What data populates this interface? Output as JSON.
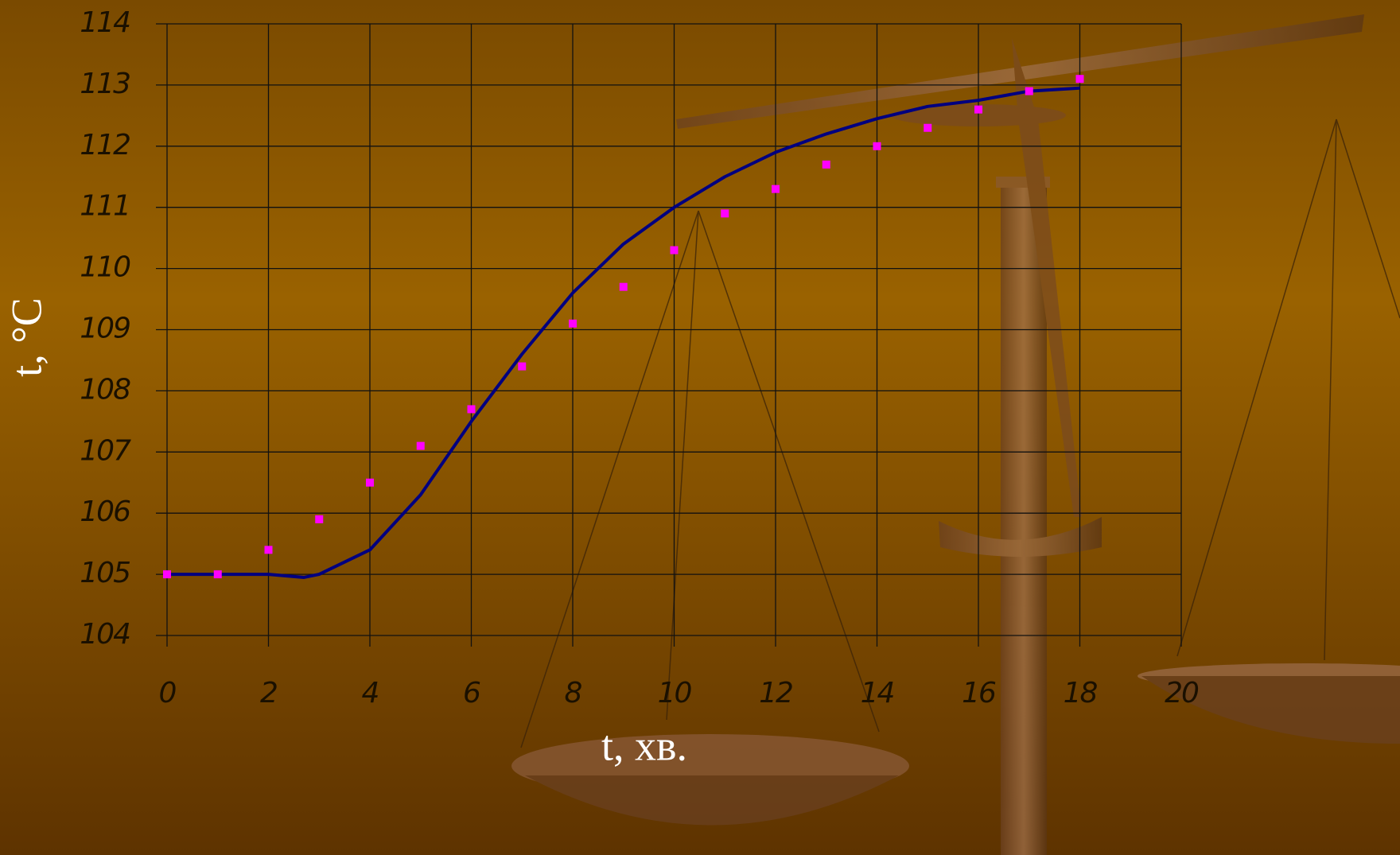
{
  "chart_data": {
    "type": "scatter",
    "xlabel": "t, хв.",
    "ylabel": "t, °C",
    "xlim": [
      0,
      20
    ],
    "ylim": [
      104,
      114
    ],
    "xticks": [
      0,
      2,
      4,
      6,
      8,
      10,
      12,
      14,
      16,
      18,
      20
    ],
    "yticks": [
      104,
      105,
      106,
      107,
      108,
      109,
      110,
      111,
      112,
      113,
      114
    ],
    "grid": true,
    "series": [
      {
        "color": "#ff00ff",
        "mode": "markers",
        "x": [
          0,
          1,
          2,
          3,
          4,
          5,
          6,
          7,
          8,
          9,
          10,
          11,
          12,
          13,
          14,
          15,
          16,
          17,
          18
        ],
        "y": [
          105,
          105,
          105.4,
          105.9,
          106.5,
          107.1,
          107.7,
          108.4,
          109.1,
          109.7,
          110.3,
          110.9,
          111.3,
          111.7,
          112.0,
          112.3,
          112.6,
          112.9,
          113.1
        ]
      },
      {
        "color": "#000080",
        "mode": "line",
        "x": [
          0,
          1,
          2,
          2.7,
          3,
          4,
          5,
          6,
          7,
          8,
          9,
          10,
          11,
          12,
          13,
          14,
          15,
          16,
          17,
          18
        ],
        "y": [
          105,
          105,
          105,
          104.95,
          105,
          105.4,
          106.3,
          107.5,
          108.6,
          109.6,
          110.4,
          111.0,
          111.5,
          111.9,
          112.2,
          112.45,
          112.65,
          112.75,
          112.9,
          112.95
        ]
      }
    ]
  }
}
